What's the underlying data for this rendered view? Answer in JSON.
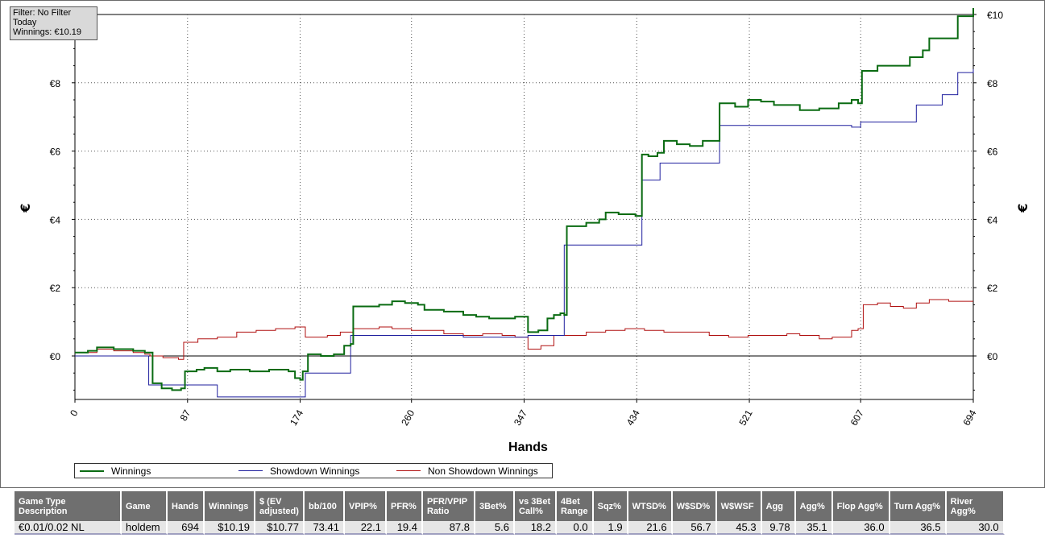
{
  "filter_box": {
    "line1": "Filter: No Filter",
    "line2": "Today",
    "line3": "Winnings: €10.19"
  },
  "chart_data": {
    "type": "line",
    "xlabel": "Hands",
    "ylabel": "€",
    "ylabel_right": "€",
    "xlim": [
      0,
      694
    ],
    "ylim": [
      -1.25,
      10.2
    ],
    "x_ticks": [
      0,
      87,
      174,
      260,
      347,
      434,
      521,
      607,
      694
    ],
    "y_ticks": [
      0,
      2,
      4,
      6,
      8,
      10
    ],
    "y_tick_labels": [
      "€0",
      "€2",
      "€4",
      "€6",
      "€8",
      "€10"
    ],
    "grid": true,
    "legend_position": "bottom-left",
    "series": [
      {
        "name": "Winnings",
        "color": "#0a6b12",
        "points": [
          [
            0,
            0.1
          ],
          [
            10,
            0.15
          ],
          [
            17,
            0.25
          ],
          [
            30,
            0.2
          ],
          [
            45,
            0.15
          ],
          [
            54,
            0.1
          ],
          [
            60,
            -0.8
          ],
          [
            67,
            -0.95
          ],
          [
            75,
            -1.0
          ],
          [
            82,
            -0.95
          ],
          [
            85,
            -0.45
          ],
          [
            94,
            -0.4
          ],
          [
            100,
            -0.35
          ],
          [
            110,
            -0.45
          ],
          [
            120,
            -0.4
          ],
          [
            135,
            -0.45
          ],
          [
            150,
            -0.4
          ],
          [
            165,
            -0.45
          ],
          [
            170,
            -0.65
          ],
          [
            174,
            -0.7
          ],
          [
            176,
            -0.45
          ],
          [
            180,
            0.05
          ],
          [
            190,
            0.0
          ],
          [
            200,
            0.05
          ],
          [
            205,
            0.05
          ],
          [
            208,
            0.3
          ],
          [
            213,
            0.35
          ],
          [
            215,
            1.45
          ],
          [
            225,
            1.45
          ],
          [
            235,
            1.5
          ],
          [
            245,
            1.6
          ],
          [
            255,
            1.55
          ],
          [
            265,
            1.5
          ],
          [
            270,
            1.35
          ],
          [
            285,
            1.3
          ],
          [
            300,
            1.2
          ],
          [
            310,
            1.15
          ],
          [
            320,
            1.1
          ],
          [
            330,
            1.1
          ],
          [
            340,
            1.15
          ],
          [
            350,
            0.7
          ],
          [
            358,
            0.75
          ],
          [
            365,
            1.1
          ],
          [
            370,
            1.2
          ],
          [
            375,
            1.25
          ],
          [
            378,
            1.2
          ],
          [
            380,
            3.8
          ],
          [
            395,
            3.9
          ],
          [
            405,
            4.0
          ],
          [
            410,
            4.2
          ],
          [
            420,
            4.15
          ],
          [
            433,
            4.1
          ],
          [
            436,
            4.1
          ],
          [
            438,
            5.9
          ],
          [
            443,
            5.85
          ],
          [
            450,
            5.95
          ],
          [
            455,
            6.3
          ],
          [
            465,
            6.2
          ],
          [
            475,
            6.15
          ],
          [
            485,
            6.3
          ],
          [
            495,
            6.3
          ],
          [
            498,
            7.4
          ],
          [
            510,
            7.3
          ],
          [
            520,
            7.5
          ],
          [
            530,
            7.45
          ],
          [
            540,
            7.35
          ],
          [
            560,
            7.2
          ],
          [
            575,
            7.25
          ],
          [
            590,
            7.4
          ],
          [
            600,
            7.5
          ],
          [
            605,
            7.4
          ],
          [
            608,
            8.35
          ],
          [
            620,
            8.5
          ],
          [
            635,
            8.5
          ],
          [
            645,
            8.75
          ],
          [
            655,
            8.95
          ],
          [
            660,
            9.3
          ],
          [
            675,
            9.3
          ],
          [
            680,
            9.3
          ],
          [
            682,
            9.95
          ],
          [
            694,
            10.19
          ]
        ]
      },
      {
        "name": "Showdown Winnings",
        "color": "#1f1f9e",
        "points": [
          [
            0,
            0.0
          ],
          [
            54,
            0.0
          ],
          [
            57,
            -0.85
          ],
          [
            80,
            -0.85
          ],
          [
            100,
            -0.85
          ],
          [
            110,
            -1.2
          ],
          [
            174,
            -1.2
          ],
          [
            178,
            -0.5
          ],
          [
            208,
            -0.5
          ],
          [
            213,
            0.6
          ],
          [
            290,
            0.6
          ],
          [
            300,
            0.55
          ],
          [
            340,
            0.55
          ],
          [
            350,
            0.6
          ],
          [
            375,
            0.6
          ],
          [
            378,
            3.25
          ],
          [
            436,
            3.25
          ],
          [
            438,
            5.15
          ],
          [
            450,
            5.15
          ],
          [
            452,
            5.65
          ],
          [
            496,
            5.65
          ],
          [
            498,
            6.75
          ],
          [
            565,
            6.75
          ],
          [
            600,
            6.7
          ],
          [
            607,
            6.85
          ],
          [
            640,
            6.85
          ],
          [
            650,
            7.35
          ],
          [
            670,
            7.65
          ],
          [
            680,
            7.65
          ],
          [
            682,
            8.3
          ],
          [
            694,
            8.4
          ]
        ]
      },
      {
        "name": "Non Showdown Winnings",
        "color": "#b01010",
        "points": [
          [
            0,
            0.1
          ],
          [
            17,
            0.2
          ],
          [
            30,
            0.15
          ],
          [
            45,
            0.1
          ],
          [
            54,
            0.05
          ],
          [
            58,
            0.0
          ],
          [
            68,
            -0.05
          ],
          [
            80,
            -0.1
          ],
          [
            84,
            0.4
          ],
          [
            95,
            0.5
          ],
          [
            110,
            0.55
          ],
          [
            125,
            0.7
          ],
          [
            140,
            0.75
          ],
          [
            155,
            0.8
          ],
          [
            170,
            0.85
          ],
          [
            178,
            0.55
          ],
          [
            195,
            0.6
          ],
          [
            205,
            0.7
          ],
          [
            215,
            0.8
          ],
          [
            225,
            0.8
          ],
          [
            235,
            0.85
          ],
          [
            245,
            0.8
          ],
          [
            260,
            0.75
          ],
          [
            275,
            0.75
          ],
          [
            285,
            0.65
          ],
          [
            300,
            0.6
          ],
          [
            315,
            0.65
          ],
          [
            330,
            0.6
          ],
          [
            340,
            0.55
          ],
          [
            350,
            0.2
          ],
          [
            360,
            0.3
          ],
          [
            370,
            0.6
          ],
          [
            380,
            0.6
          ],
          [
            395,
            0.7
          ],
          [
            410,
            0.75
          ],
          [
            425,
            0.8
          ],
          [
            440,
            0.75
          ],
          [
            455,
            0.7
          ],
          [
            475,
            0.7
          ],
          [
            490,
            0.6
          ],
          [
            505,
            0.55
          ],
          [
            520,
            0.6
          ],
          [
            535,
            0.6
          ],
          [
            550,
            0.65
          ],
          [
            560,
            0.6
          ],
          [
            575,
            0.5
          ],
          [
            585,
            0.55
          ],
          [
            600,
            0.75
          ],
          [
            605,
            0.8
          ],
          [
            609,
            1.5
          ],
          [
            620,
            1.55
          ],
          [
            630,
            1.45
          ],
          [
            640,
            1.4
          ],
          [
            650,
            1.55
          ],
          [
            660,
            1.65
          ],
          [
            675,
            1.6
          ],
          [
            694,
            1.6
          ]
        ]
      }
    ]
  },
  "stats_table": {
    "headers": [
      "Game Type Description",
      "Game",
      "Hands",
      "Winnings",
      "$ (EV adjusted)",
      "bb/100",
      "VPIP%",
      "PFR%",
      "PFR/VPIP Ratio",
      "3Bet%",
      "vs 3Bet Call%",
      "4Bet Range",
      "Sqz%",
      "WTSD%",
      "W$SD%",
      "W$WSF",
      "Agg",
      "Agg%",
      "Flop Agg%",
      "Turn Agg%",
      "River Agg%"
    ],
    "row": [
      "€0.01/0.02 NL",
      "holdem",
      "694",
      "$10.19",
      "$10.77",
      "73.41",
      "22.1",
      "19.4",
      "87.8",
      "5.6",
      "18.2",
      "0.0",
      "1.9",
      "21.6",
      "56.7",
      "45.3",
      "9.78",
      "35.1",
      "36.0",
      "36.5",
      "30.0"
    ]
  }
}
